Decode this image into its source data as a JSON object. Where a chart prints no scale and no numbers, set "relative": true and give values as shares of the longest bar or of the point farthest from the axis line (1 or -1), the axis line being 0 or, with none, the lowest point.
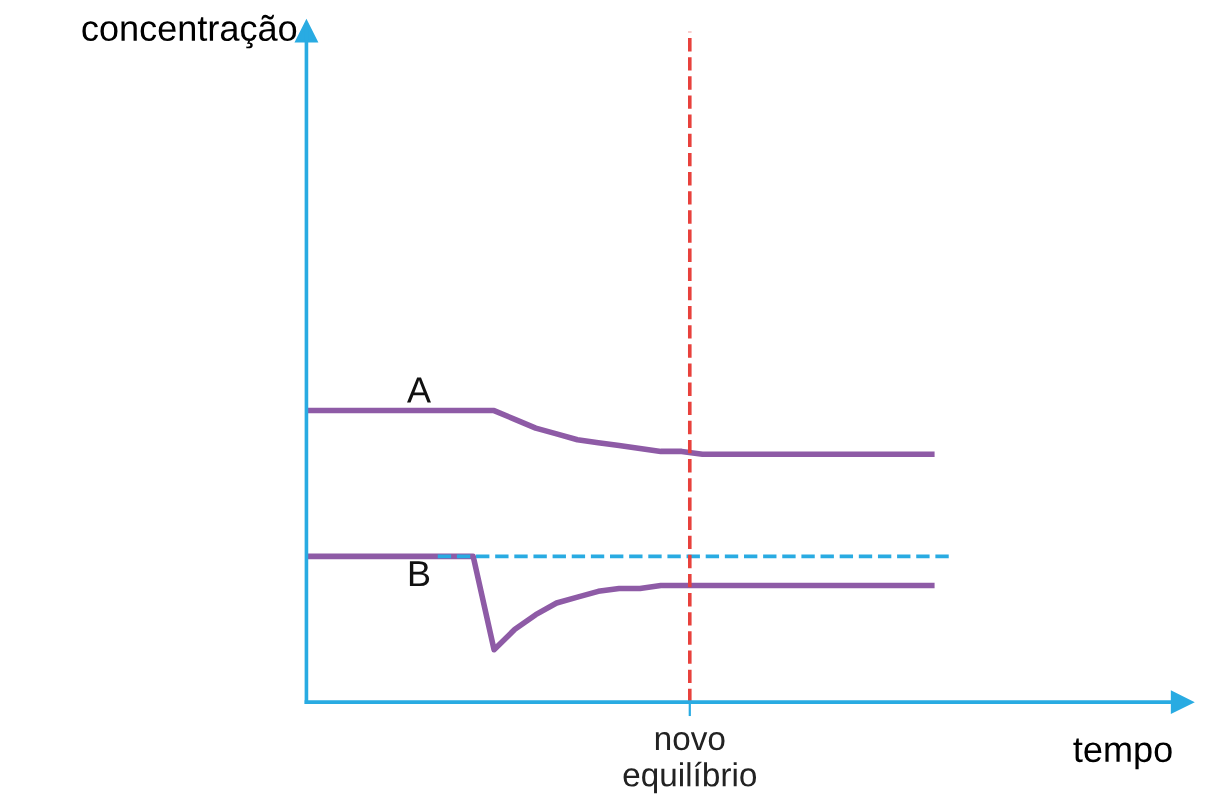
{
  "chart_data": {
    "type": "line",
    "relative": true,
    "xlabel": "tempo",
    "annotations": [
      "novo\nequilíbrio",
      "concentração"
    ],
    "categories": [
      null,
      null,
      null,
      null,
      null,
      null,
      null,
      null,
      null,
      null,
      null,
      null,
      null,
      null,
      null,
      null,
      null,
      null,
      null,
      null,
      null,
      null,
      null,
      null,
      null,
      null,
      null,
      null,
      null,
      null,
      null
    ],
    "series": [
      {
        "name": "A",
        "color": "#8e5ba6",
        "values": [
          1,
          1,
          1,
          1,
          1,
          1,
          1,
          1,
          1,
          1,
          0.97,
          0.94,
          0.92,
          0.9,
          0.89,
          0.88,
          0.87,
          0.86,
          0.86,
          0.85,
          0.85,
          0.85,
          0.85,
          0.85,
          0.85,
          0.85,
          0.85,
          0.85,
          0.85,
          0.85,
          0.85
        ]
      },
      {
        "name": "B",
        "color": "#8e5ba6",
        "values": [
          0.5,
          0.5,
          0.5,
          0.5,
          0.5,
          0.5,
          0.5,
          0.5,
          0.5,
          0.18,
          0.25,
          0.3,
          0.34,
          0.36,
          0.38,
          0.39,
          0.39,
          0.4,
          0.4,
          0.4,
          0.4,
          0.4,
          0.4,
          0.4,
          0.4,
          0.4,
          0.4,
          0.4,
          0.4,
          0.4,
          0.4
        ]
      }
    ],
    "ref_lines": [
      {
        "axis": "y",
        "value": 0.5,
        "color": "#29abe2",
        "line_style": "dashed"
      }
    ],
    "grid": false,
    "legend": false,
    "marker": "none",
    "line_style": "solid"
  }
}
